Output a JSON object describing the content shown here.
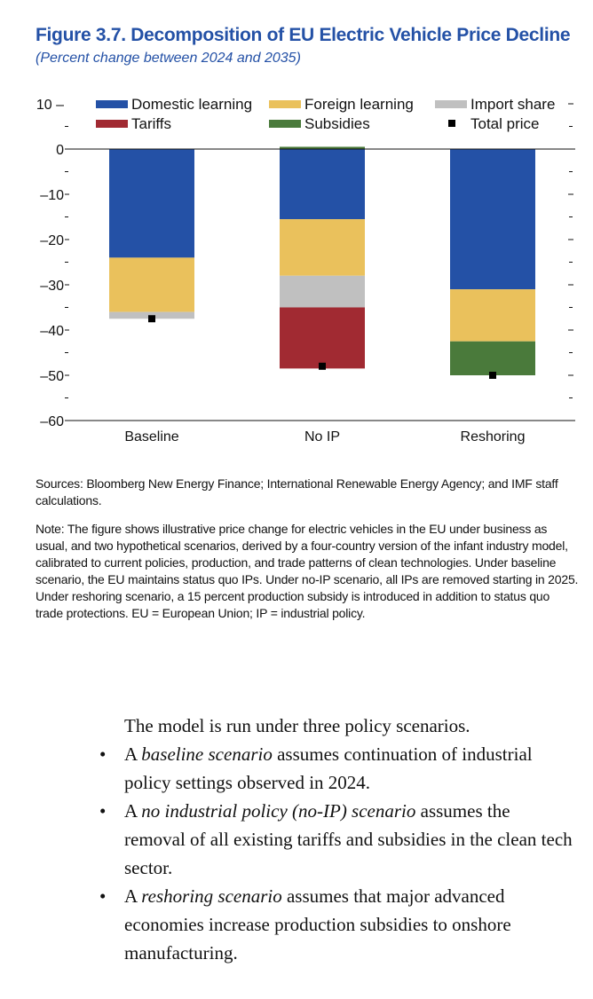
{
  "figure": {
    "title": "Figure 3.7.  Decomposition of EU Electric Vehicle Price Decline",
    "subtitle": "(Percent change between 2024 and 2035)"
  },
  "chart_data": {
    "type": "bar",
    "stacked": true,
    "categories": [
      "Baseline",
      "No IP",
      "Reshoring"
    ],
    "ylim": [
      -60,
      10
    ],
    "yticks": [
      10,
      0,
      -10,
      -20,
      -30,
      -40,
      -50,
      -60
    ],
    "ytick_labels": [
      "10 –",
      "0",
      "–10",
      "–20",
      "–30",
      "–40",
      "–50",
      "–60"
    ],
    "legend_position": "top",
    "series": [
      {
        "name": "Domestic learning",
        "color": "#2451a6",
        "values": [
          -24,
          -15.5,
          -31
        ]
      },
      {
        "name": "Foreign learning",
        "color": "#eac15c",
        "values": [
          -12,
          -12.5,
          -11.5
        ]
      },
      {
        "name": "Import share",
        "color": "#c0c0c0",
        "values": [
          -1.5,
          -7,
          0
        ]
      },
      {
        "name": "Tariffs",
        "color": "#a12a32",
        "values": [
          0,
          -13.5,
          0
        ]
      },
      {
        "name": "Subsidies",
        "color": "#4a7a3b",
        "values": [
          0,
          0.5,
          -7.5
        ]
      }
    ],
    "total": {
      "name": "Total price",
      "color": "#000000",
      "values": [
        -37.5,
        -48,
        -50
      ]
    }
  },
  "sources": "Sources: Bloomberg New Energy Finance; International Renewable Energy Agency; and IMF staff calculations.",
  "note": "Note: The figure shows illustrative price change for electric vehicles in the EU under business as usual, and two hypothetical scenarios, derived by a four-country version of the infant industry model, calibrated to current policies, production, and trade patterns of clean technologies. Under baseline scenario, the EU maintains status quo IPs. Under no-IP scenario, all IPs are removed starting in 2025. Under reshoring scenario, a 15 percent production subsidy is introduced in addition to status quo trade protections. EU = European Union; IP = industrial policy.",
  "body": {
    "lead": "The model is run under three policy scenarios.",
    "bullets": [
      {
        "prefix": "A ",
        "term": "baseline scenario",
        "rest": " assumes continuation of industrial policy settings observed in 2024."
      },
      {
        "prefix": "A ",
        "term": "no industrial policy (no-IP) scenario",
        "rest": " assumes the removal of all existing tariffs and subsidies in the clean tech sector."
      },
      {
        "prefix": "A ",
        "term": "reshoring scenario",
        "rest": " assumes that major advanced economies increase production subsidies to onshore manufacturing."
      }
    ]
  }
}
